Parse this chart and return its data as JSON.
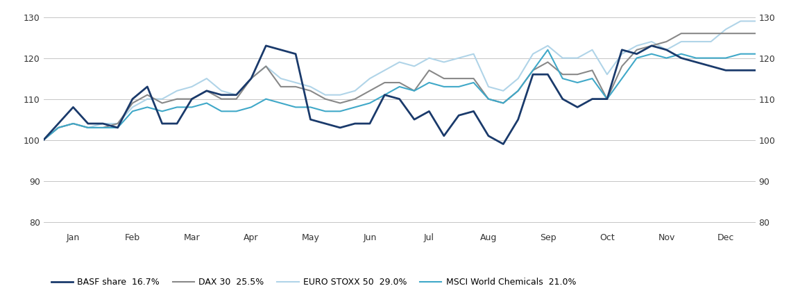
{
  "ylim": [
    78,
    132
  ],
  "yticks": [
    80,
    90,
    100,
    110,
    120,
    130
  ],
  "months": [
    "Jan",
    "Feb",
    "Mar",
    "Apr",
    "May",
    "Jun",
    "Jul",
    "Aug",
    "Sep",
    "Oct",
    "Nov",
    "Dec"
  ],
  "basf": [
    100,
    104,
    108,
    104,
    104,
    103,
    110,
    113,
    104,
    104,
    110,
    112,
    111,
    111,
    115,
    123,
    122,
    121,
    105,
    104,
    103,
    104,
    104,
    111,
    110,
    105,
    107,
    101,
    106,
    107,
    101,
    99,
    105,
    116,
    116,
    110,
    108,
    110,
    110,
    122,
    121,
    123,
    122,
    120,
    119,
    118,
    117,
    117,
    117
  ],
  "dax30": [
    100,
    103,
    104,
    103,
    103,
    104,
    109,
    111,
    109,
    110,
    110,
    112,
    110,
    110,
    115,
    118,
    113,
    113,
    112,
    110,
    109,
    110,
    112,
    114,
    114,
    112,
    117,
    115,
    115,
    115,
    110,
    109,
    112,
    117,
    119,
    116,
    116,
    117,
    110,
    118,
    122,
    123,
    124,
    126,
    126,
    126,
    126,
    126,
    126
  ],
  "estoxx": [
    100,
    103,
    104,
    103,
    104,
    104,
    108,
    110,
    110,
    112,
    113,
    115,
    112,
    111,
    115,
    118,
    115,
    114,
    113,
    111,
    111,
    112,
    115,
    117,
    119,
    118,
    120,
    119,
    120,
    121,
    113,
    112,
    115,
    121,
    123,
    120,
    120,
    122,
    116,
    121,
    123,
    124,
    122,
    124,
    124,
    124,
    127,
    129,
    129
  ],
  "msci": [
    100,
    103,
    104,
    103,
    103,
    103,
    107,
    108,
    107,
    108,
    108,
    109,
    107,
    107,
    108,
    110,
    109,
    108,
    108,
    107,
    107,
    108,
    109,
    111,
    113,
    112,
    114,
    113,
    113,
    114,
    110,
    109,
    112,
    117,
    122,
    115,
    114,
    115,
    110,
    115,
    120,
    121,
    120,
    121,
    120,
    120,
    120,
    121,
    121
  ],
  "colors": {
    "basf": "#1a3a6b",
    "dax30": "#888888",
    "estoxx": "#b0d4e8",
    "msci": "#3fa8c8"
  },
  "linewidths": {
    "basf": 2.0,
    "dax30": 1.5,
    "estoxx": 1.5,
    "msci": 1.5
  },
  "legend_labels": [
    "BASF share  16.7%",
    "DAX 30  25.5%",
    "EURO STOXX 50  29.0%",
    "MSCI World Chemicals  21.0%"
  ],
  "background_color": "#ffffff"
}
